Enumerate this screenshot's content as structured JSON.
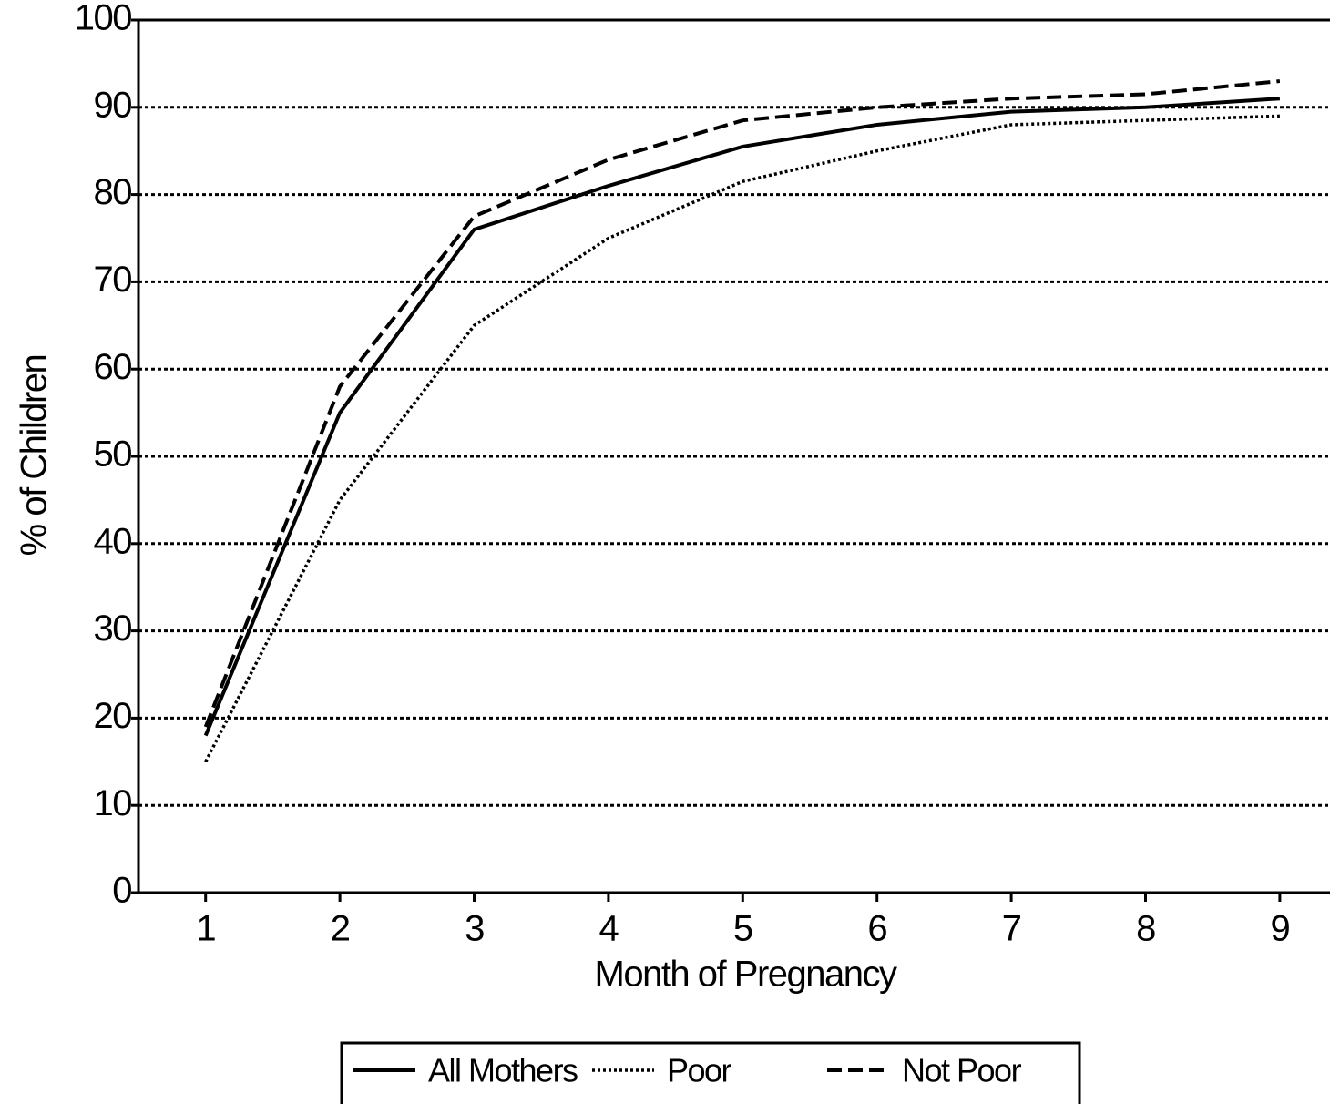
{
  "chart_data": {
    "type": "line",
    "x": [
      1,
      2,
      3,
      4,
      5,
      6,
      7,
      8,
      9
    ],
    "xlabel": "Month of Pregnancy",
    "ylabel": "% of Children",
    "xlim": [
      0.5,
      9.5
    ],
    "xticks": [
      1,
      2,
      3,
      4,
      5,
      6,
      7,
      8,
      9
    ],
    "ylim": [
      0,
      100
    ],
    "yticks": [
      0,
      10,
      20,
      30,
      40,
      50,
      60,
      70,
      80,
      90,
      100
    ],
    "grid": true,
    "legend": "bottom",
    "series": [
      {
        "name": "All Mothers",
        "color": "#000000",
        "dash": "solid",
        "values": [
          18,
          55,
          76,
          81,
          85.5,
          88,
          89.5,
          90,
          91
        ]
      },
      {
        "name": "Poor",
        "color": "#000000",
        "dash": "dotted",
        "values": [
          15,
          45,
          65,
          75,
          81.5,
          85,
          88,
          88.5,
          89
        ]
      },
      {
        "name": "Not Poor",
        "color": "#000000",
        "dash": "dashed",
        "values": [
          19,
          58,
          77.5,
          84,
          88.5,
          90,
          91,
          91.5,
          93
        ]
      }
    ]
  }
}
